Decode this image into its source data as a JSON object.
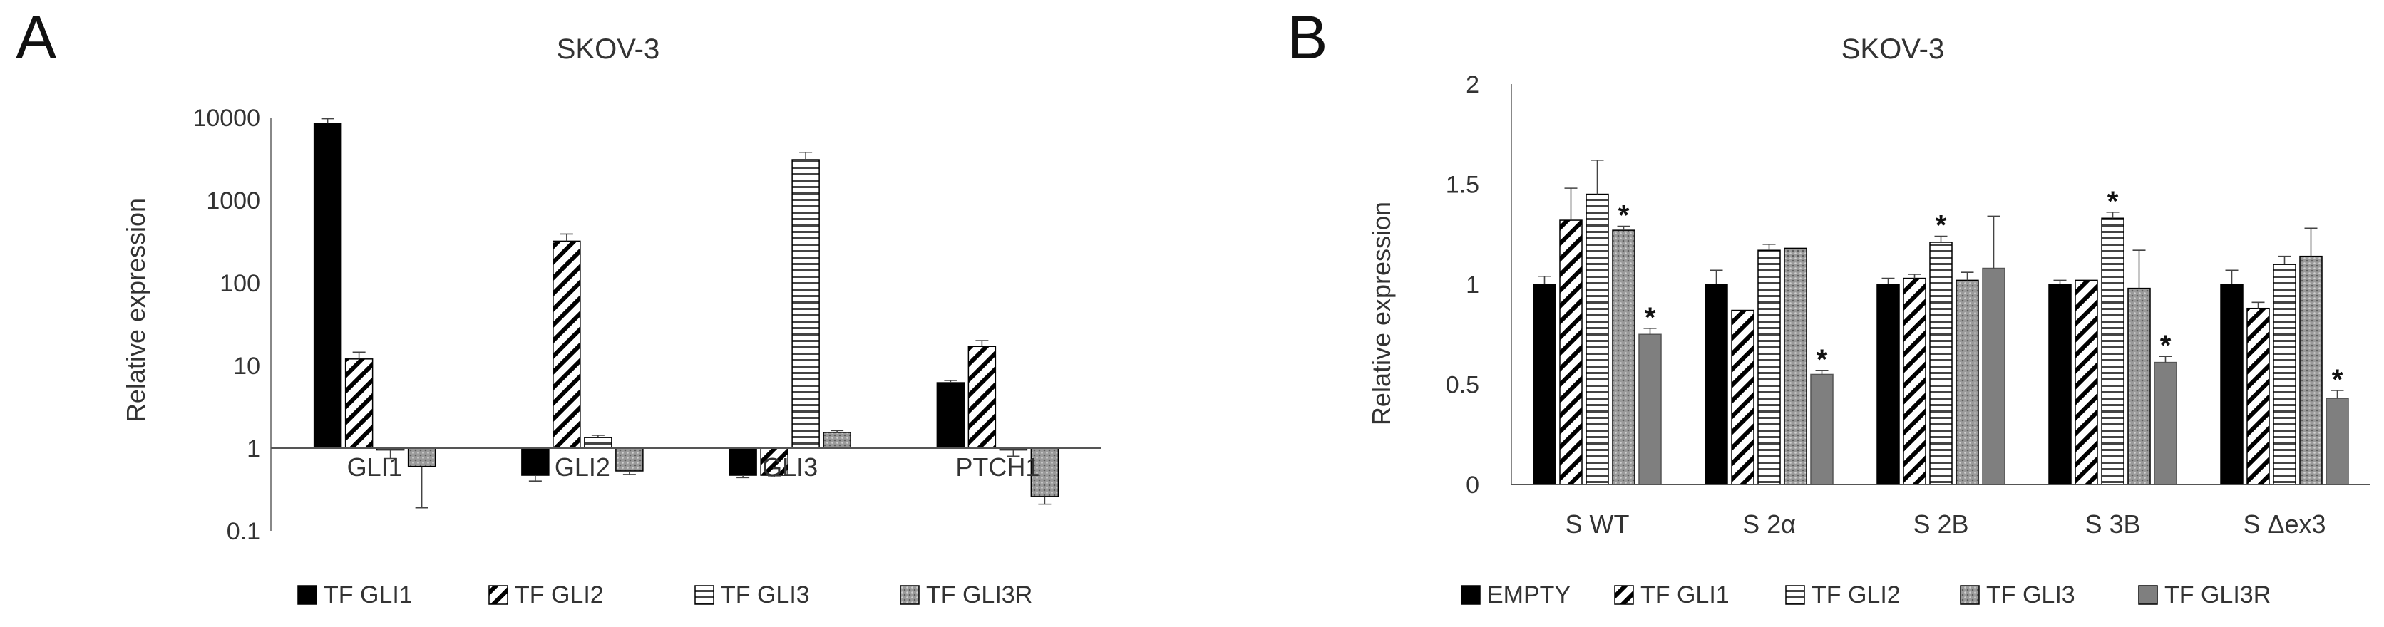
{
  "panels": [
    {
      "letter": "A",
      "chart_data": {
        "type": "bar",
        "title": "SKOV-3",
        "ylabel": "Relative expression",
        "xlabel": "",
        "yscale": "log",
        "ylim": [
          0.1,
          10000
        ],
        "yticks": [
          "0.1",
          "1",
          "10",
          "100",
          "1000",
          "10000"
        ],
        "baseline": 1,
        "grid": false,
        "legend_position": "bottom",
        "categories": [
          "GLI1",
          "GLI2",
          "GLI3",
          "PTCH1"
        ],
        "series": [
          {
            "name": "TF GLI1",
            "values": [
              8500,
              0.47,
              0.47,
              6.2
            ],
            "errors": [
              1200,
              0.07,
              0.03,
              0.4
            ],
            "pattern": "solid"
          },
          {
            "name": "TF GLI2",
            "values": [
              12,
              320,
              0.47,
              17
            ],
            "errors": [
              2.5,
              70,
              0.02,
              3
            ],
            "pattern": "diagonal"
          },
          {
            "name": "TF GLI3",
            "values": [
              0.95,
              1.35,
              3100,
              0.95
            ],
            "errors": [
              0.2,
              0.08,
              700,
              0.15
            ],
            "pattern": "horizontal"
          },
          {
            "name": "TF GLI3R",
            "values": [
              0.6,
              0.53,
              1.55,
              0.26
            ],
            "errors": [
              0.41,
              0.05,
              0.08,
              0.05
            ],
            "pattern": "dots"
          }
        ],
        "annotations": []
      }
    },
    {
      "letter": "B",
      "chart_data": {
        "type": "bar",
        "title": "SKOV-3",
        "ylabel": "Relative expression",
        "xlabel": "",
        "yscale": "linear",
        "ylim": [
          0,
          2
        ],
        "yticks": [
          "0",
          "0.5",
          "1",
          "1.5",
          "2"
        ],
        "baseline": 0,
        "grid": false,
        "legend_position": "bottom",
        "categories": [
          "S WT",
          "S 2α",
          "S 2B",
          "S 3B",
          "S Δex3"
        ],
        "series": [
          {
            "name": "EMPTY",
            "values": [
              1.0,
              1.0,
              1.0,
              1.0,
              1.0
            ],
            "errors": [
              0.04,
              0.07,
              0.03,
              0.02,
              0.07
            ],
            "pattern": "solid"
          },
          {
            "name": "TF GLI1",
            "values": [
              1.32,
              0.87,
              1.03,
              1.02,
              0.88
            ],
            "errors": [
              0.16,
              0.0,
              0.02,
              0.0,
              0.03
            ],
            "pattern": "diagonal"
          },
          {
            "name": "TF GLI2",
            "values": [
              1.45,
              1.17,
              1.21,
              1.33,
              1.1
            ],
            "errors": [
              0.17,
              0.03,
              0.03,
              0.03,
              0.04
            ],
            "pattern": "horizontal"
          },
          {
            "name": "TF GLI3",
            "values": [
              1.27,
              1.18,
              1.02,
              0.98,
              1.14
            ],
            "errors": [
              0.02,
              0.0,
              0.04,
              0.19,
              0.14
            ],
            "pattern": "dots"
          },
          {
            "name": "TF GLI3R",
            "values": [
              0.75,
              0.55,
              1.08,
              0.61,
              0.43
            ],
            "errors": [
              0.03,
              0.02,
              0.26,
              0.03,
              0.04
            ],
            "pattern": "gray"
          }
        ],
        "annotations": [
          {
            "category": 0,
            "series": 3,
            "text": "*"
          },
          {
            "category": 0,
            "series": 4,
            "text": "*"
          },
          {
            "category": 1,
            "series": 4,
            "text": "*"
          },
          {
            "category": 2,
            "series": 2,
            "text": "*"
          },
          {
            "category": 3,
            "series": 2,
            "text": "*"
          },
          {
            "category": 3,
            "series": 4,
            "text": "*"
          },
          {
            "category": 4,
            "series": 4,
            "text": "*"
          }
        ]
      }
    }
  ]
}
